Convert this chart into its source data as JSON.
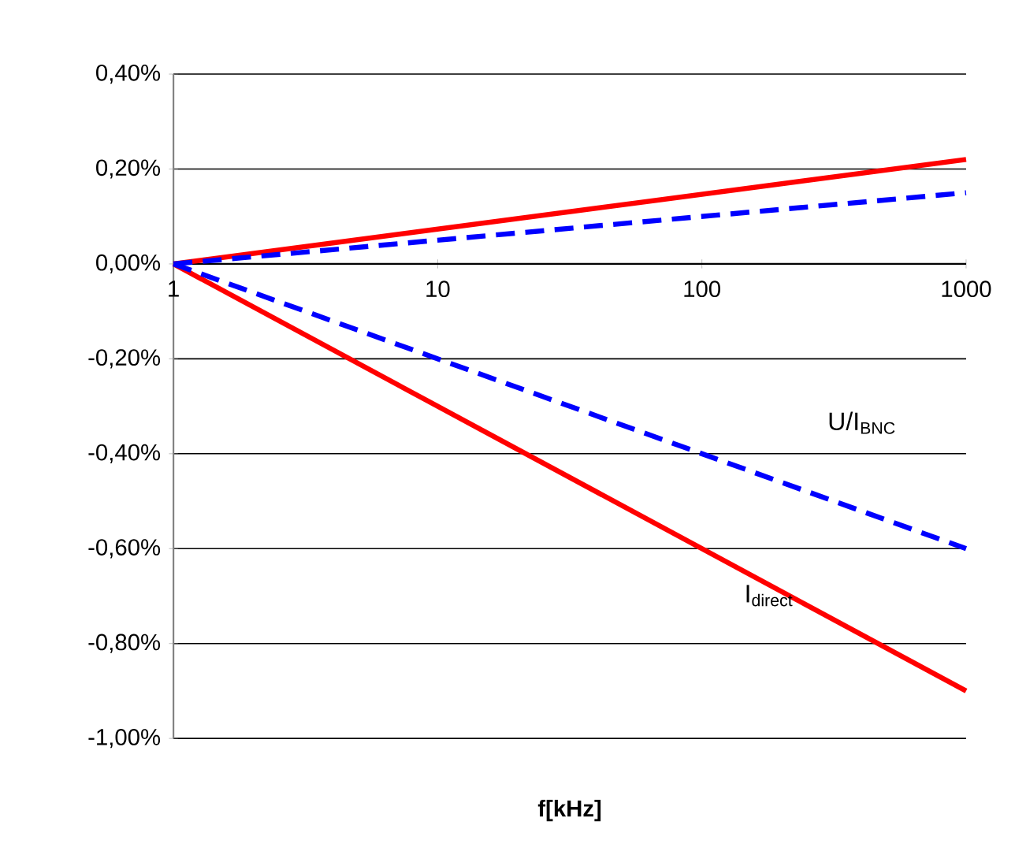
{
  "chart_data": {
    "type": "line",
    "xlabel": "f[kHz]",
    "log": "x",
    "grid": "y",
    "marker": "none",
    "x": [
      1,
      1000
    ],
    "xlim": [
      1,
      1000
    ],
    "xticks": [
      1,
      10,
      100,
      1000
    ],
    "ylim": [
      -1.0,
      0.4
    ],
    "yticks": [
      {
        "value": -1.0,
        "label": "-1,00%"
      },
      {
        "value": -0.8,
        "label": "-0,80%"
      },
      {
        "value": -0.6,
        "label": "-0,60%"
      },
      {
        "value": -0.4,
        "label": "-0,40%"
      },
      {
        "value": -0.2,
        "label": "-0,20%"
      },
      {
        "value": 0,
        "label": "0,00%"
      },
      {
        "value": 0.2,
        "label": "0,20%"
      },
      {
        "value": 0.4,
        "label": "0,40%"
      }
    ],
    "series": [
      {
        "color": "#ff0000",
        "line_style": "solid",
        "values": [
          0,
          0.22
        ]
      },
      {
        "color": "#0000ff",
        "line_style": "dashed",
        "values": [
          0,
          0.15
        ]
      },
      {
        "color": "#ff0000",
        "line_style": "solid",
        "values": [
          0,
          -0.9
        ]
      },
      {
        "color": "#0000ff",
        "line_style": "dashed",
        "values": [
          0,
          -0.6
        ]
      }
    ],
    "annotations": [
      "U/I$_{BNC}$",
      "I$_{direct}$"
    ]
  }
}
